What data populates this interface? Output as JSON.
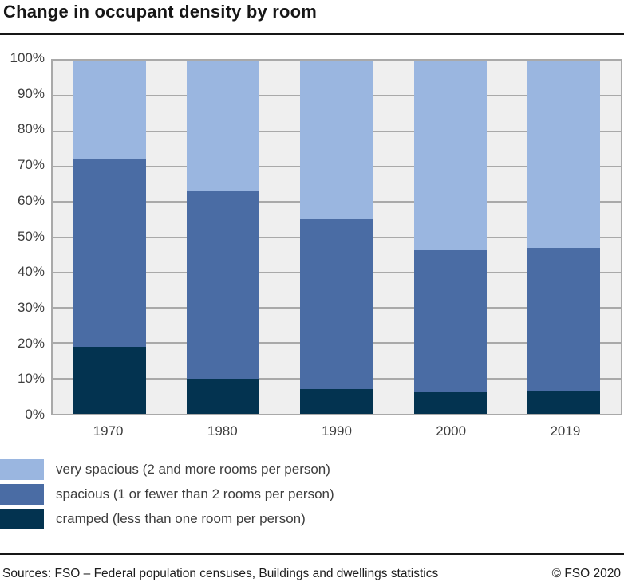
{
  "title": "Change in occupant density by room",
  "chart_data": {
    "type": "bar",
    "stacked": true,
    "title": "Change in occupant density by room",
    "categories": [
      "1970",
      "1980",
      "1990",
      "2000",
      "2019"
    ],
    "series": [
      {
        "name": "cramped (less than one room per person)",
        "color": "#033350",
        "values": [
          19,
          10,
          7,
          6,
          6.5
        ]
      },
      {
        "name": "spacious (1 or fewer than 2 rooms per person)",
        "color": "#4a6ca4",
        "values": [
          53,
          53,
          48,
          40.5,
          40.5
        ]
      },
      {
        "name": "very spacious (2 and more rooms per person)",
        "color": "#9ab6e0",
        "values": [
          28,
          37,
          45,
          53.5,
          53
        ]
      }
    ],
    "ylim": [
      0,
      100
    ],
    "ytick_step": 10,
    "ytick_suffix": "%",
    "grid": true,
    "gridline_color": "#a9a9a9",
    "plot_bg": "#efefef",
    "frame_color": "#a9a9a9",
    "legend_position": "bottom-left",
    "legend_order_top_to_bottom": [
      "very spacious (2 and more rooms per person)",
      "spacious (1 or fewer than 2 rooms per person)",
      "cramped (less than one room per person)"
    ]
  },
  "footer": {
    "sources": "Sources: FSO – Federal population censuses, Buildings and dwellings statistics",
    "copyright": "© FSO 2020"
  }
}
